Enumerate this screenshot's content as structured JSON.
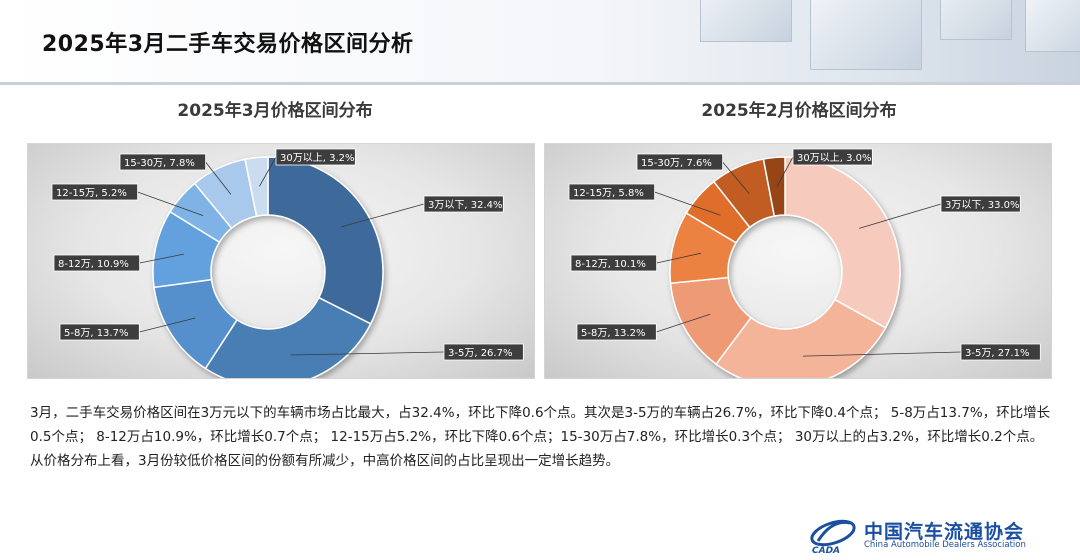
{
  "page": {
    "title": "2025年3月二手车交易价格区间分析",
    "body": [
      "3月，二手车交易价格区间在3万元以下的车辆市场占比最大，占32.4%，环比下降0.6个点。其次是3-5万的车辆占26.7%，环比下降0.4个点； 5-8万占13.7%，环比增长0.5个点； 8-12万占10.9%，环比增长0.7个点； 12-15万占5.2%，环比下降0.6个点；15-30万占7.8%，环比增长0.3个点； 30万以上的占3.2%，环比增长0.2个点。",
      "从价格分布上看，3月份较低价格区间的份额有所减少，中高价格区间的占比呈现出一定增长趋势。"
    ],
    "logo": {
      "cn": "中国汽车流通协会",
      "en": "China Automobile Dealers Association",
      "icon": "cada-logo-icon",
      "mark": "CADA"
    }
  },
  "chart_data": [
    {
      "type": "pie",
      "title": "2025年3月价格区间分布",
      "donut": true,
      "categories": [
        "3万以下",
        "3-5万",
        "5-8万",
        "8-12万",
        "12-15万",
        "15-30万",
        "30万以上"
      ],
      "values": [
        32.4,
        26.7,
        13.7,
        10.9,
        5.2,
        7.8,
        3.2
      ],
      "labels": [
        "3万以下, 32.4%",
        "3-5万, 26.7%",
        "5-8万, 13.7%",
        "8-12万, 10.9%",
        "12-15万, 5.2%",
        "15-30万, 7.8%",
        "30万以上, 3.2%"
      ],
      "colors": [
        "#3e6a9a",
        "#4a7eb5",
        "#5690cc",
        "#62a0de",
        "#7fb3e6",
        "#a8c8ec",
        "#cbdcf1"
      ]
    },
    {
      "type": "pie",
      "title": "2025年2月价格区间分布",
      "donut": true,
      "categories": [
        "3万以下",
        "3-5万",
        "5-8万",
        "8-12万",
        "12-15万",
        "15-30万",
        "30万以上"
      ],
      "values": [
        33.0,
        27.1,
        13.2,
        10.1,
        5.8,
        7.6,
        3.0
      ],
      "labels": [
        "3万以下, 33.0%",
        "3-5万, 27.1%",
        "5-8万, 13.2%",
        "8-12万, 10.1%",
        "12-15万, 5.8%",
        "15-30万, 7.6%",
        "30万以上, 3.0%"
      ],
      "colors": [
        "#f6cbbd",
        "#f3b49a",
        "#ee9a74",
        "#ec8243",
        "#de6e2c",
        "#c15c20",
        "#964414"
      ]
    }
  ]
}
